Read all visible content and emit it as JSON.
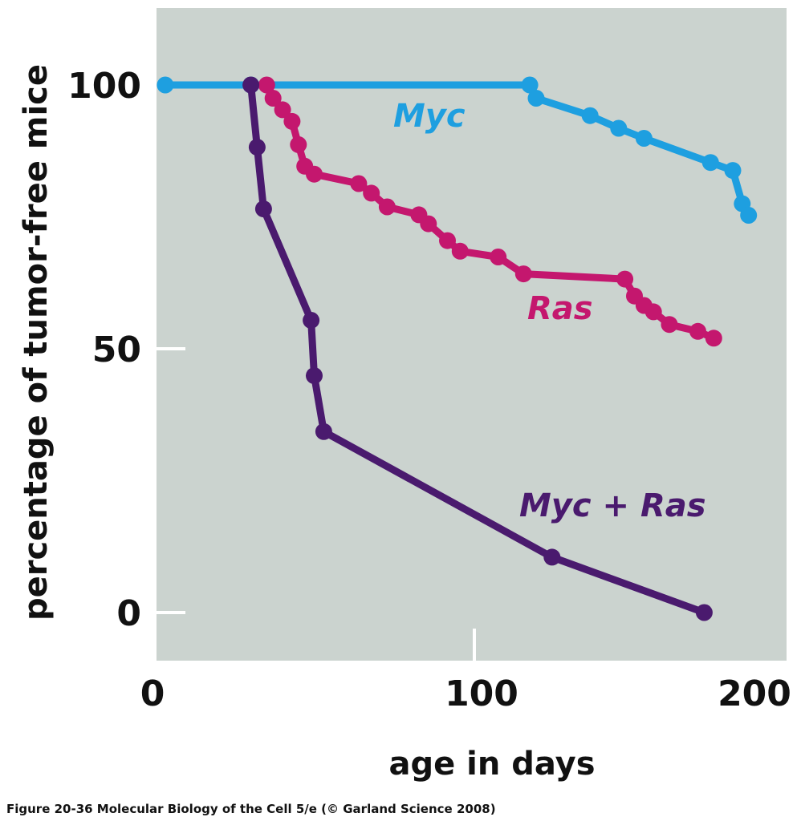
{
  "chart_data": {
    "type": "line",
    "xlabel": "age in days",
    "ylabel": "percentage of tumor-free mice",
    "xlim": [
      0,
      200
    ],
    "ylim": [
      -8.5,
      115
    ],
    "x_ticks": [
      0,
      100,
      200
    ],
    "y_ticks": [
      0,
      50,
      100
    ],
    "grid": false,
    "legend": "inline labels",
    "colors": {
      "background": "#cbd3cf",
      "tick_marks": "#ffffff"
    },
    "series": [
      {
        "name": "Myc",
        "color": "#1e9fe0",
        "x": [
          2,
          29,
          117,
          119,
          136,
          145,
          153,
          174,
          181,
          184,
          186
        ],
        "y": [
          100,
          100,
          100,
          97.5,
          94.2,
          91.8,
          89.9,
          85.3,
          83.8,
          77.5,
          75.3
        ]
      },
      {
        "name": "Ras",
        "color": "#c4176e",
        "x": [
          34,
          36,
          39,
          42,
          44,
          46,
          49,
          63,
          67,
          72,
          82,
          85,
          91,
          95,
          107,
          115,
          147,
          150,
          153,
          156,
          161,
          170,
          175
        ],
        "y": [
          100,
          97.5,
          95.3,
          93.1,
          88.7,
          84.6,
          83.1,
          81.3,
          79.5,
          76.9,
          75.4,
          73.7,
          70.5,
          68.5,
          67.4,
          64.2,
          63.2,
          60,
          58.2,
          57,
          54.6,
          53.3,
          52
        ]
      },
      {
        "name": "Myc + Ras",
        "color": "#4a1a6e",
        "x": [
          29,
          31,
          33,
          48,
          49,
          52,
          124,
          172
        ],
        "y": [
          100,
          88.2,
          76.5,
          55.4,
          44.9,
          34.3,
          10.5,
          0
        ]
      }
    ]
  },
  "caption": "Figure 20-36  Molecular Biology of the Cell 5/e (© Garland Science 2008)"
}
